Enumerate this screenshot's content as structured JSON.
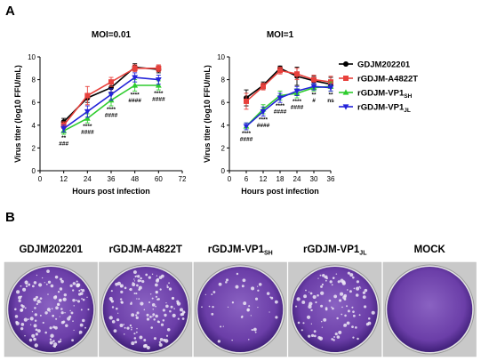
{
  "panel_a_letter": "A",
  "panel_b_letter": "B",
  "legend": [
    {
      "label": "GDJM202201",
      "sub": "",
      "color": "#000000",
      "marker": "circle"
    },
    {
      "label": "rGDJM-A4822T",
      "sub": "",
      "color": "#e8413c",
      "marker": "square"
    },
    {
      "label": "rGDJM-VP1",
      "sub": "SH",
      "color": "#2ecc2e",
      "marker": "triangle-up"
    },
    {
      "label": "rGDJM-VP1",
      "sub": "JL",
      "color": "#2323d9",
      "marker": "triangle-down"
    }
  ],
  "chart_data": [
    {
      "type": "line",
      "title": "MOI=0.01",
      "xlabel": "Hours post infection",
      "ylabel": "Virus titer (log10 FFU/mL)",
      "xlim": [
        0,
        72
      ],
      "ylim": [
        0,
        10
      ],
      "xticks": [
        0,
        12,
        24,
        36,
        48,
        60,
        72
      ],
      "yticks": [
        0,
        2,
        4,
        6,
        8,
        10
      ],
      "x": [
        12,
        24,
        36,
        48,
        60
      ],
      "series": [
        {
          "name": "GDJM202201",
          "values": [
            4.3,
            6.4,
            7.3,
            9.1,
            8.9
          ],
          "errors": [
            0.3,
            0.4,
            0.4,
            0.3,
            0.3
          ]
        },
        {
          "name": "rGDJM-A4822T",
          "values": [
            4.0,
            6.6,
            7.8,
            9.0,
            9.0
          ],
          "errors": [
            0.3,
            0.8,
            0.4,
            0.3,
            0.3
          ]
        },
        {
          "name": "rGDJM-VP1SH",
          "values": [
            3.5,
            4.6,
            6.2,
            7.5,
            7.5
          ],
          "errors": [
            0.3,
            0.4,
            0.5,
            0.5,
            0.4
          ]
        },
        {
          "name": "rGDJM-VP1JL",
          "values": [
            3.7,
            5.2,
            6.7,
            8.2,
            8.0
          ],
          "errors": [
            0.3,
            0.5,
            0.5,
            0.4,
            0.4
          ]
        }
      ],
      "annotations": [
        {
          "x": 12,
          "lines": [
            "**",
            "###"
          ]
        },
        {
          "x": 24,
          "lines": [
            "****",
            "####"
          ]
        },
        {
          "x": 36,
          "lines": [
            "****",
            "####"
          ]
        },
        {
          "x": 48,
          "lines": [
            "****",
            "####"
          ]
        },
        {
          "x": 60,
          "lines": [
            "****",
            "####"
          ]
        }
      ]
    },
    {
      "type": "line",
      "title": "MOI=1",
      "xlabel": "Hours post infection",
      "ylabel": "Virus titer (log10 FFU/mL)",
      "xlim": [
        0,
        36
      ],
      "ylim": [
        0,
        10
      ],
      "xticks": [
        0,
        6,
        12,
        18,
        24,
        30,
        36
      ],
      "yticks": [
        0,
        2,
        4,
        6,
        8,
        10
      ],
      "x": [
        6,
        12,
        18,
        24,
        30,
        36
      ],
      "series": [
        {
          "name": "GDJM202201",
          "values": [
            6.4,
            7.5,
            9.0,
            8.3,
            7.9,
            7.6
          ],
          "errors": [
            0.7,
            0.3,
            0.2,
            0.8,
            0.4,
            0.6
          ]
        },
        {
          "name": "rGDJM-A4822T",
          "values": [
            6.1,
            7.4,
            8.8,
            8.5,
            8.0,
            7.8
          ],
          "errors": [
            0.7,
            0.3,
            0.3,
            0.5,
            0.4,
            0.5
          ]
        },
        {
          "name": "rGDJM-VP1SH",
          "values": [
            3.9,
            5.4,
            6.6,
            6.8,
            7.3,
            7.4
          ],
          "errors": [
            0.3,
            0.4,
            0.4,
            0.4,
            0.3,
            0.4
          ]
        },
        {
          "name": "rGDJM-VP1JL",
          "values": [
            3.9,
            5.2,
            6.4,
            7.0,
            7.4,
            7.3
          ],
          "errors": [
            0.3,
            0.4,
            0.4,
            0.4,
            0.3,
            0.3
          ]
        }
      ],
      "annotations": [
        {
          "x": 6,
          "lines": [
            "****",
            "####"
          ]
        },
        {
          "x": 12,
          "lines": [
            "****",
            "####"
          ]
        },
        {
          "x": 18,
          "lines": [
            "****",
            "####"
          ]
        },
        {
          "x": 24,
          "lines": [
            "****",
            "####"
          ]
        },
        {
          "x": 30,
          "lines": [
            "**",
            "#"
          ]
        },
        {
          "x": 36,
          "lines": [
            "**",
            "ns"
          ]
        }
      ]
    }
  ],
  "plates": [
    {
      "label": "GDJM202201",
      "sub": "",
      "density": 0.78
    },
    {
      "label": "rGDJM-A4822T",
      "sub": "",
      "density": 0.8
    },
    {
      "label": "rGDJM-VP1",
      "sub": "SH",
      "density": 0.25
    },
    {
      "label": "rGDJM-VP1",
      "sub": "JL",
      "density": 0.6
    },
    {
      "label": "MOCK",
      "sub": "",
      "density": 0
    }
  ]
}
